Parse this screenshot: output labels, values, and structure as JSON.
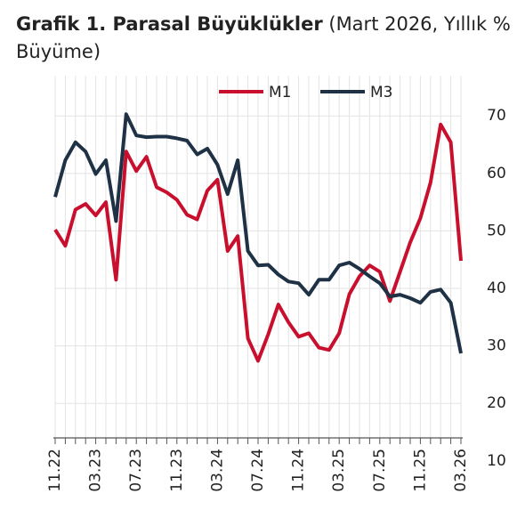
{
  "chart_data": {
    "type": "line",
    "title": "Grafik 1. Parasal Büyüklükler",
    "subtitle": "(Mart 2026, Yıllık % Büyüme)",
    "categories": [
      "11.22",
      null,
      null,
      null,
      "03.23",
      null,
      null,
      null,
      "07.23",
      null,
      null,
      null,
      "11.23",
      null,
      null,
      null,
      "03.24",
      null,
      null,
      null,
      "07.24",
      null,
      null,
      null,
      "11.24",
      null,
      null,
      null,
      "03.25",
      null,
      null,
      null,
      "07.25",
      null,
      null,
      null,
      "11.25",
      null,
      null,
      null,
      "03.26"
    ],
    "series": [
      {
        "name": "M1",
        "color": "#c8102e",
        "values": [
          50.2,
          47.4,
          53.7,
          54.7,
          52.7,
          55,
          41.5,
          63.8,
          60.4,
          62.9,
          57.6,
          56.7,
          55.4,
          52.8,
          52,
          57,
          58.9,
          46.5,
          49.1,
          31.3,
          27.4,
          32,
          37.2,
          34.1,
          31.6,
          32.2,
          29.7,
          29.3,
          32.2,
          39,
          42.1,
          44,
          42.9,
          37.8,
          42.9,
          48,
          52.2,
          58.4,
          68.5,
          65.4,
          44.8
        ]
      },
      {
        "name": "M3",
        "color": "#1f3145",
        "values": [
          55.9,
          62.3,
          65.4,
          63.8,
          59.9,
          62.3,
          51.7,
          70.3,
          66.6,
          66.3,
          66.4,
          66.4,
          66.1,
          65.7,
          63.3,
          64.3,
          61.5,
          56.4,
          62.3,
          46.5,
          44,
          44.1,
          42.4,
          41.2,
          40.9,
          38.9,
          41.5,
          41.5,
          44,
          44.5,
          43.4,
          42.1,
          40.9,
          38.6,
          38.9,
          38.3,
          37.5,
          39.4,
          39.8,
          37.5,
          28.7
        ]
      }
    ],
    "ylim": [
      14,
      77
    ],
    "yticks": [
      10,
      20,
      30,
      40,
      50,
      60,
      70
    ],
    "grid": true,
    "legend": "top"
  }
}
